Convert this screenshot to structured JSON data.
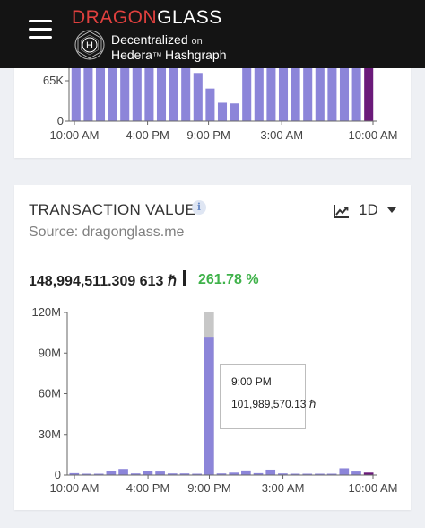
{
  "header": {
    "logo_part1": "DRAGON",
    "logo_part2": "GLASS",
    "badge_letter": "H",
    "tagline_line1_a": "Decentralized",
    "tagline_line1_b": "on",
    "tagline_line2_a": "Hedera",
    "tagline_line2_b": "Hashgraph",
    "menu_icon": "hamburger-menu-icon"
  },
  "chart_data": [
    {
      "type": "bar",
      "title": "",
      "y_tick_labels": [
        "65K",
        "0"
      ],
      "x_tick_labels": [
        "10:00 AM",
        "4:00 PM",
        "9:00 PM",
        "3:00 AM",
        "10:00 AM"
      ],
      "values": [
        95,
        95,
        95,
        95,
        95,
        95,
        95,
        95,
        95,
        95,
        68,
        46,
        26,
        25,
        95,
        95,
        95,
        95,
        95,
        95,
        95,
        95,
        95,
        95,
        95
      ],
      "highlight_last": true,
      "bar_color": "#8c85d9",
      "highlight_color": "#6b1a7a"
    },
    {
      "type": "bar",
      "title": "TRANSACTION VALUE",
      "source": "Source: dragonglass.me",
      "ylim": [
        0,
        120000000
      ],
      "y_tick_labels": [
        "120M",
        "90M",
        "60M",
        "30M",
        "0"
      ],
      "x_tick_labels": [
        "10:00 AM",
        "4:00 PM",
        "9:00 PM",
        "3:00 AM",
        "10:00 AM"
      ],
      "values": [
        1400000,
        1000000,
        300000,
        3000000,
        4500000,
        1200000,
        3000000,
        2600000,
        1200000,
        1200000,
        800000,
        101989570,
        1200000,
        1800000,
        3400000,
        1400000,
        4000000,
        1200000,
        1000000,
        600000,
        700000,
        600000,
        5000000,
        2600000,
        1800000
      ],
      "highlight_index": 11,
      "highlight_cap": 120000000,
      "bar_color": "#8c85d9",
      "highlight_color": "#6b1a7a"
    }
  ],
  "card2": {
    "title": "TRANSACTION VALUE",
    "source": "Source: dragonglass.me",
    "period": "1D",
    "total": "148,994,511.309 613 ℏ",
    "percent": "261.78 %",
    "tooltip_time": "9:00 PM",
    "tooltip_value": "101,989,570.13 ℏ"
  },
  "colors": {
    "bar": "#8c85d9",
    "highlight": "#6b1a7a",
    "positive": "#3fb24a",
    "header_bg": "#141414",
    "logo_red": "#e0403e"
  }
}
